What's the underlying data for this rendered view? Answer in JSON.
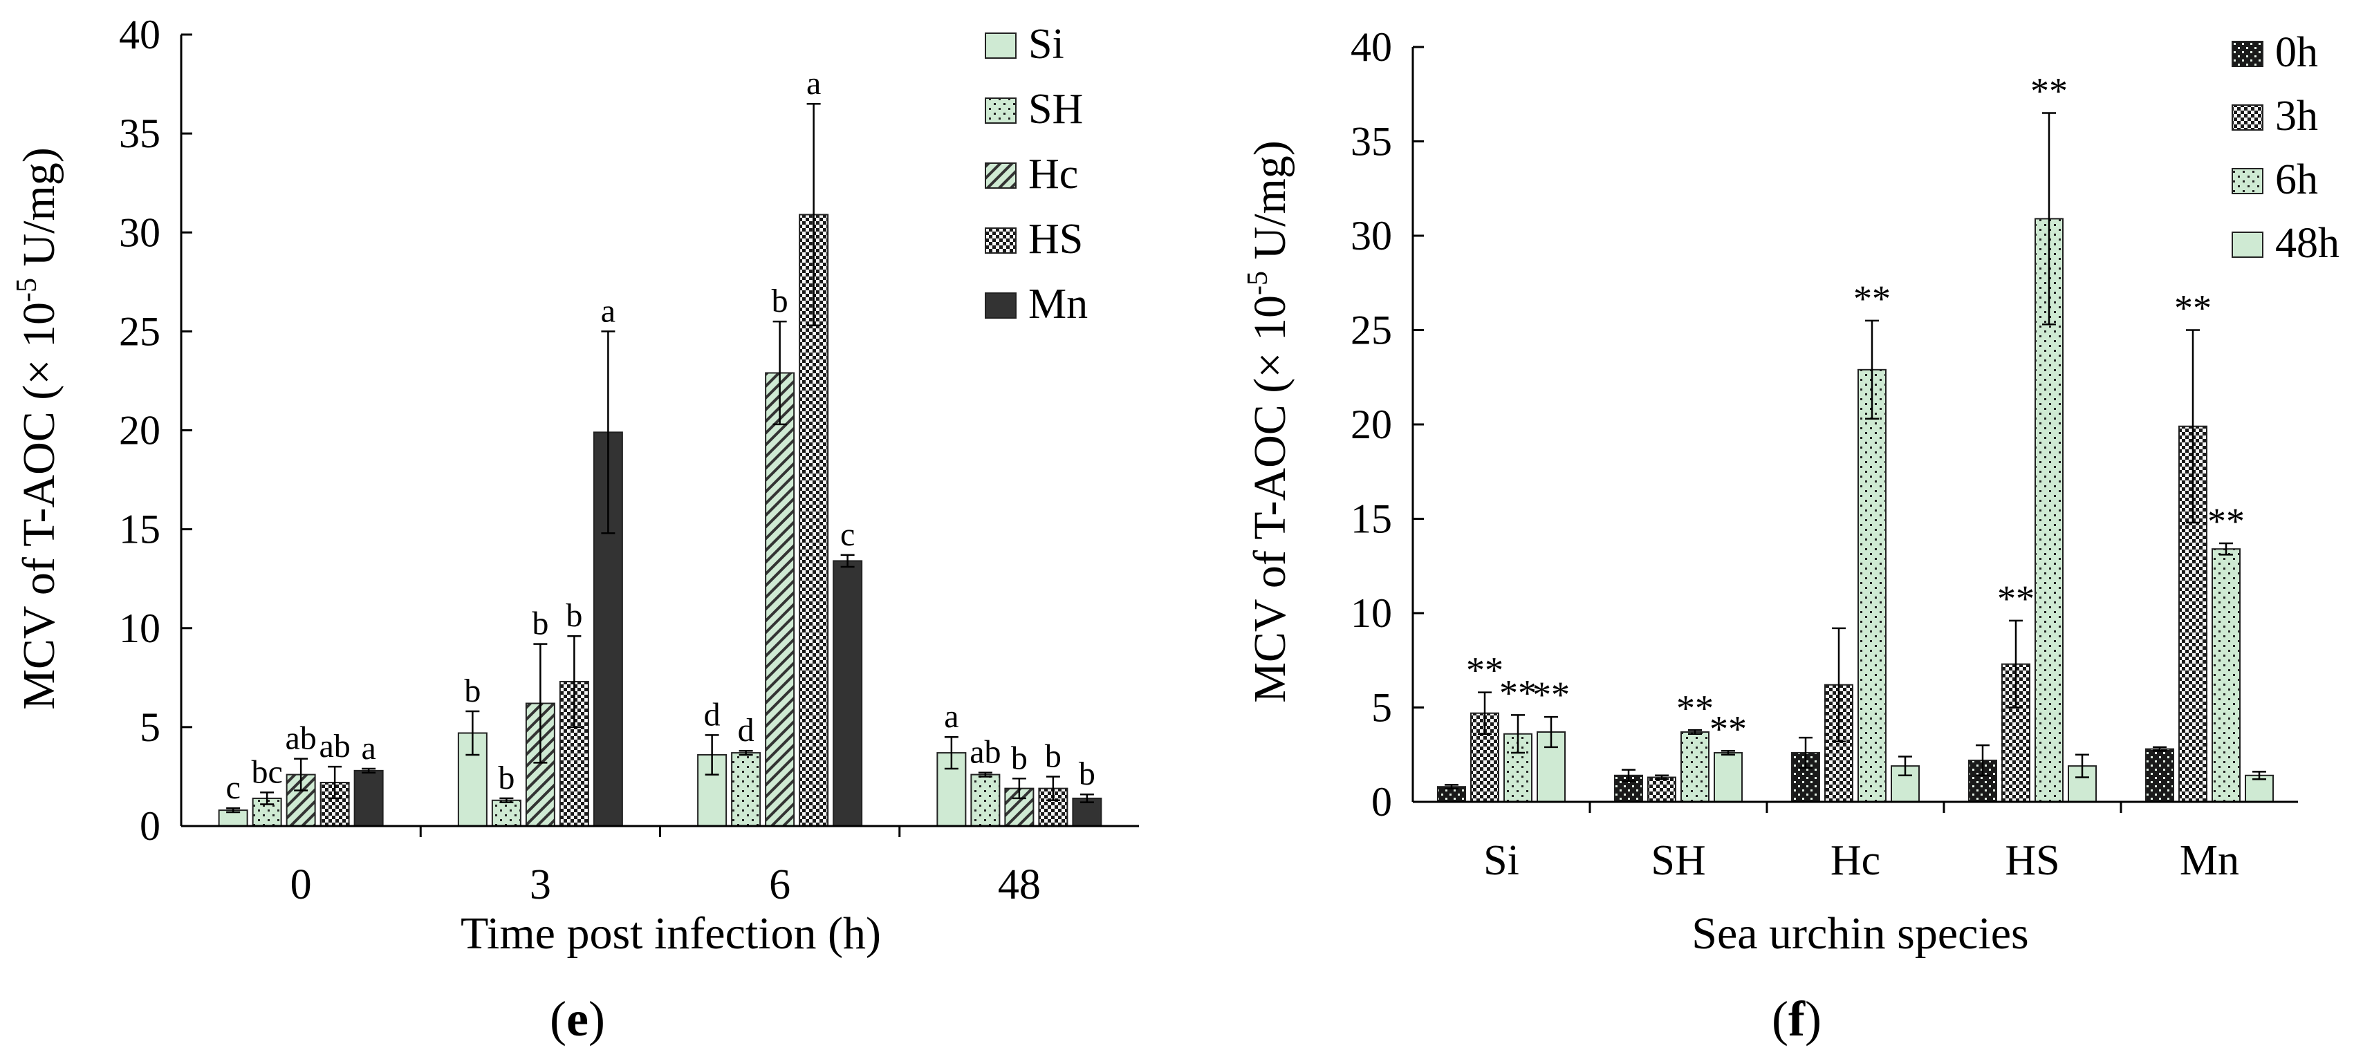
{
  "colors": {
    "light_green": "#cfead3",
    "dark": "#333333",
    "checker_dark": "#1a1a1a",
    "axis": "#000000"
  },
  "panel_e": {
    "label": "e",
    "legend": [
      "Si",
      "SH",
      "Hc",
      "HS",
      "Mn"
    ]
  },
  "panel_f": {
    "label": "f",
    "legend": [
      "0h",
      "3h",
      "6h",
      "48h"
    ]
  },
  "chart_data": [
    {
      "type": "bar",
      "title": "",
      "panel": "(e)",
      "xlabel": "Time post infection (h)",
      "ylabel_main": "MCV of T-AOC (× 10",
      "ylabel_sup": "-5",
      "ylabel_tail": " U/mg)",
      "ylim": [
        0,
        40
      ],
      "yticks": [
        0,
        5,
        10,
        15,
        20,
        25,
        30,
        35,
        40
      ],
      "categories": [
        "0",
        "3",
        "6",
        "48"
      ],
      "legend_position": "top-right",
      "series": [
        {
          "name": "Si",
          "pattern": "plain-light",
          "values": [
            0.8,
            4.7,
            3.6,
            3.7
          ],
          "errors": [
            0.1,
            1.1,
            1.0,
            0.8
          ],
          "labels": [
            "c",
            "b",
            "d",
            "a"
          ]
        },
        {
          "name": "SH",
          "pattern": "dots-light",
          "values": [
            1.4,
            1.3,
            3.7,
            2.6
          ],
          "errors": [
            0.3,
            0.1,
            0.1,
            0.1
          ],
          "labels": [
            "bc",
            "b",
            "d",
            "ab"
          ]
        },
        {
          "name": "Hc",
          "pattern": "diagonal-light",
          "values": [
            2.6,
            6.2,
            22.9,
            1.9
          ],
          "errors": [
            0.8,
            3.0,
            2.6,
            0.5
          ],
          "labels": [
            "ab",
            "b",
            "b",
            "b"
          ]
        },
        {
          "name": "HS",
          "pattern": "checker",
          "values": [
            2.2,
            7.3,
            30.9,
            1.9
          ],
          "errors": [
            0.8,
            2.3,
            5.6,
            0.6
          ],
          "labels": [
            "ab",
            "b",
            "a",
            "b"
          ]
        },
        {
          "name": "Mn",
          "pattern": "solid-dark",
          "values": [
            2.8,
            19.9,
            13.4,
            1.4
          ],
          "errors": [
            0.1,
            5.1,
            0.3,
            0.2
          ],
          "labels": [
            "a",
            "a",
            "c",
            "b"
          ]
        }
      ]
    },
    {
      "type": "bar",
      "title": "",
      "panel": "(f)",
      "xlabel": "Sea urchin species",
      "ylabel_main": "MCV of T-AOC (× 10",
      "ylabel_sup": "-5",
      "ylabel_tail": " U/mg)",
      "ylim": [
        0,
        40
      ],
      "yticks": [
        0,
        5,
        10,
        15,
        20,
        25,
        30,
        35,
        40
      ],
      "categories": [
        "Si",
        "SH",
        "Hc",
        "HS",
        "Mn"
      ],
      "legend_position": "top-right",
      "series": [
        {
          "name": "0h",
          "pattern": "dark-dots",
          "values": [
            0.8,
            1.4,
            2.6,
            2.2,
            2.8
          ],
          "errors": [
            0.1,
            0.3,
            0.8,
            0.8,
            0.1
          ],
          "labels": [
            "",
            "",
            "",
            "",
            ""
          ]
        },
        {
          "name": "3h",
          "pattern": "checker",
          "values": [
            4.7,
            1.3,
            6.2,
            7.3,
            19.9
          ],
          "errors": [
            1.1,
            0.1,
            3.0,
            2.3,
            5.1
          ],
          "labels": [
            "**",
            "",
            "",
            "**",
            "**"
          ]
        },
        {
          "name": "6h",
          "pattern": "dots-light",
          "values": [
            3.6,
            3.7,
            22.9,
            30.9,
            13.4
          ],
          "errors": [
            1.0,
            0.1,
            2.6,
            5.6,
            0.3
          ],
          "labels": [
            "**",
            "**",
            "**",
            "**",
            "**"
          ]
        },
        {
          "name": "48h",
          "pattern": "plain-light",
          "values": [
            3.7,
            2.6,
            1.9,
            1.9,
            1.4
          ],
          "errors": [
            0.8,
            0.1,
            0.5,
            0.6,
            0.2
          ],
          "labels": [
            "**",
            "**",
            "",
            "",
            ""
          ]
        }
      ]
    }
  ]
}
